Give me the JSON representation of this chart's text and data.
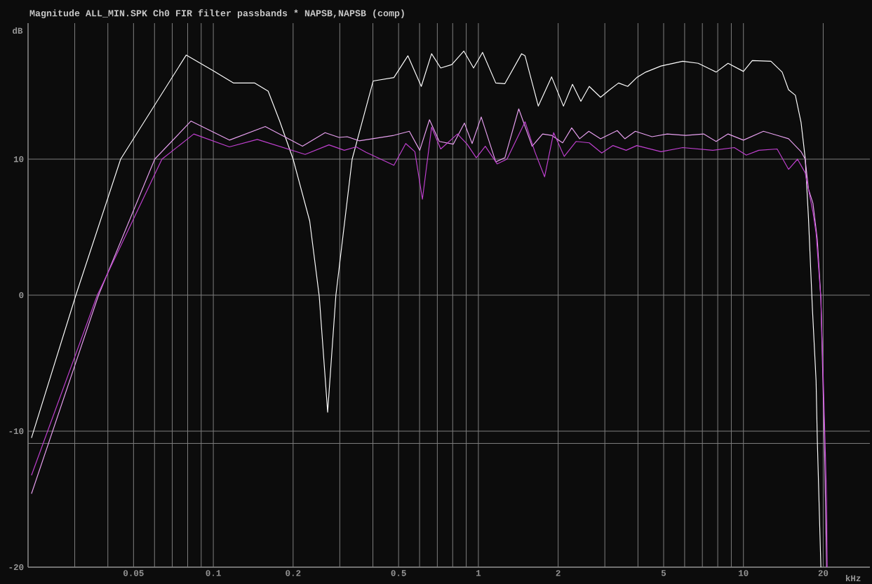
{
  "chart_data": {
    "type": "line",
    "title": "Magnitude ALL_MIN.SPK Ch0 FIR filter passbands * NAPSB,NAPSB (comp)",
    "xlabel": "kHz",
    "ylabel": "dB",
    "log": "x",
    "grid": true,
    "marker": "none",
    "line_style": "solid",
    "xlim": [
      0.02,
      30
    ],
    "ylim": [
      -20,
      20
    ],
    "xticks": [
      0.05,
      0.1,
      0.2,
      0.5,
      1,
      2,
      5,
      10,
      20
    ],
    "yticks": [
      -20,
      -10,
      0,
      10
    ],
    "ref_lines": [
      {
        "axis": "y",
        "value": -10.9,
        "color": "#808080"
      }
    ],
    "series": [
      {
        "color": "#ffffff",
        "x": [
          0.0206,
          0.0303,
          0.0447,
          0.079,
          0.1,
          0.119,
          0.143,
          0.161,
          0.178,
          0.2,
          0.231,
          0.251,
          0.27,
          0.29,
          0.334,
          0.401,
          0.48,
          0.542,
          0.609,
          0.666,
          0.721,
          0.794,
          0.881,
          0.959,
          1.037,
          1.163,
          1.259,
          1.456,
          1.5,
          1.683,
          1.889,
          2.094,
          2.265,
          2.436,
          2.62,
          2.89,
          3.13,
          3.38,
          3.66,
          3.96,
          4.28,
          4.89,
          5.9,
          6.75,
          7.89,
          8.75,
          10.0,
          10.8,
          12.7,
          14.0,
          14.8,
          15.7,
          16.5,
          17.1,
          17.6,
          18.2,
          18.8,
          19.0,
          19.6
        ],
        "values": [
          -10.5,
          0,
          10,
          17.65,
          16.5,
          15.6,
          15.6,
          15.0,
          12.8,
          10,
          5.45,
          -0.1,
          -8.6,
          0,
          10,
          15.75,
          16.0,
          17.6,
          15.35,
          17.75,
          16.7,
          16.95,
          17.95,
          16.7,
          17.85,
          15.6,
          15.55,
          17.75,
          17.6,
          13.9,
          16.05,
          13.9,
          15.5,
          14.25,
          15.35,
          14.55,
          15.1,
          15.6,
          15.35,
          16.0,
          16.4,
          16.85,
          17.2,
          17.05,
          16.4,
          17.05,
          16.45,
          17.25,
          17.2,
          16.4,
          15.1,
          14.7,
          12.7,
          10.1,
          5.65,
          -0.9,
          -6.3,
          -10.65,
          -20
        ]
      },
      {
        "color": "#e8a0f0",
        "x": [
          0.0206,
          0.0369,
          0.0601,
          0.0824,
          0.115,
          0.157,
          0.217,
          0.264,
          0.298,
          0.32,
          0.355,
          0.48,
          0.549,
          0.601,
          0.654,
          0.712,
          0.804,
          0.886,
          0.947,
          1.025,
          1.163,
          1.259,
          1.42,
          1.595,
          1.747,
          1.889,
          2.08,
          2.25,
          2.41,
          2.61,
          2.89,
          3.34,
          3.57,
          3.91,
          4.52,
          5.16,
          6.05,
          7.08,
          7.89,
          8.75,
          10.0,
          11.9,
          13.4,
          14.8,
          16.5,
          17.1,
          17.6,
          18.3,
          19.0,
          19.6,
          19.95,
          20.2,
          20.6
        ],
        "values": [
          -14.6,
          0,
          10,
          12.8,
          11.4,
          12.4,
          10.95,
          11.95,
          11.6,
          11.65,
          11.35,
          11.75,
          12.05,
          10.65,
          12.9,
          11.3,
          11.1,
          12.65,
          11.15,
          13.1,
          9.8,
          10.1,
          13.7,
          10.95,
          11.85,
          11.75,
          11.2,
          12.3,
          11.5,
          12.05,
          11.5,
          12.1,
          11.5,
          12.05,
          11.65,
          11.85,
          11.75,
          11.85,
          11.3,
          11.85,
          11.4,
          12.05,
          11.75,
          11.5,
          10.55,
          10.0,
          7.8,
          6.75,
          4.1,
          -0.25,
          -6.3,
          -10.65,
          -20
        ]
      },
      {
        "color": "#c040d0",
        "x": [
          0.0206,
          0.0365,
          0.064,
          0.0844,
          0.115,
          0.1465,
          0.222,
          0.273,
          0.312,
          0.346,
          0.377,
          0.48,
          0.532,
          0.576,
          0.615,
          0.666,
          0.721,
          0.834,
          0.907,
          0.982,
          1.062,
          1.178,
          1.282,
          1.5,
          1.633,
          1.778,
          1.923,
          2.108,
          2.336,
          2.62,
          2.92,
          3.22,
          3.61,
          3.96,
          4.89,
          5.9,
          7.66,
          9.24,
          10.25,
          11.43,
          13.4,
          14.8,
          16.0,
          17.1,
          18.3,
          18.8,
          19.6,
          20.1,
          20.6,
          20.7
        ],
        "values": [
          -13.25,
          0,
          10,
          11.85,
          10.9,
          11.45,
          10.35,
          11.05,
          10.65,
          10.9,
          10.5,
          9.55,
          11.15,
          10.55,
          7.05,
          12.35,
          10.75,
          11.85,
          11.1,
          10.1,
          10.95,
          9.65,
          10.0,
          12.75,
          10.55,
          8.7,
          11.95,
          10.2,
          11.3,
          11.2,
          10.45,
          11.0,
          10.65,
          11.0,
          10.55,
          10.85,
          10.65,
          10.85,
          10.3,
          10.65,
          10.75,
          9.25,
          10.0,
          9.0,
          6.1,
          4.55,
          -0.25,
          -7.4,
          -15,
          -20
        ]
      }
    ]
  }
}
